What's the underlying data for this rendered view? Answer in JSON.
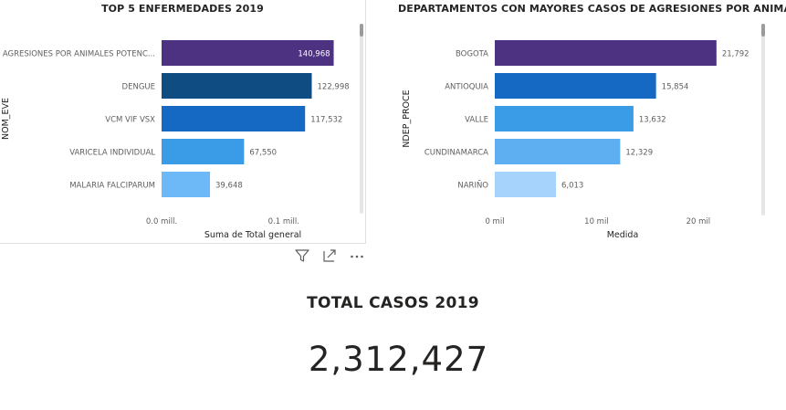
{
  "chart_data": [
    {
      "type": "bar",
      "orientation": "horizontal",
      "title": "TOP 5 ENFERMEDADES 2019",
      "xlabel": "Suma de Total general",
      "ylabel": "NOM_EVE",
      "categories": [
        "AGRESIONES POR ANIMALES POTENC...",
        "DENGUE",
        "VCM VIF VSX",
        "VARICELA INDIVIDUAL",
        "MALARIA FALCIPARUM"
      ],
      "values": [
        140968,
        122998,
        117532,
        67550,
        39648
      ],
      "value_labels": [
        "140,968",
        "122,998",
        "117,532",
        "67,550",
        "39,648"
      ],
      "bar_colors": [
        "#4e3282",
        "#0f4c81",
        "#1669c3",
        "#3a9be6",
        "#6db8f7"
      ],
      "xlim": [
        0,
        160000
      ],
      "xticks": [
        {
          "value": 0,
          "label": "0.0 mill."
        },
        {
          "value": 100000,
          "label": "0.1 mill."
        }
      ]
    },
    {
      "type": "bar",
      "orientation": "horizontal",
      "title": "DEPARTAMENTOS CON MAYORES CASOS DE AGRESIONES POR ANIMALES",
      "xlabel": "Medida",
      "ylabel": "NDEP_PROCE",
      "categories": [
        "BOGOTA",
        "ANTIOQUIA",
        "VALLE",
        "CUNDINAMARCA",
        "NARIÑO"
      ],
      "values": [
        21792,
        15854,
        13632,
        12329,
        6013
      ],
      "value_labels": [
        "21,792",
        "15,854",
        "13,632",
        "12,329",
        "6,013"
      ],
      "bar_colors": [
        "#4e3282",
        "#1669c3",
        "#3a9be6",
        "#5eaef2",
        "#a6d3fb"
      ],
      "xlim": [
        0,
        24500
      ],
      "xticks": [
        {
          "value": 0,
          "label": "0 mil"
        },
        {
          "value": 10000,
          "label": "10 mil"
        },
        {
          "value": 20000,
          "label": "20 mil"
        }
      ]
    }
  ],
  "card": {
    "label": "TOTAL CASOS 2019",
    "value": "2,312,427"
  },
  "header_icons": [
    "filter-icon",
    "focus-mode-icon",
    "more-options-icon"
  ]
}
